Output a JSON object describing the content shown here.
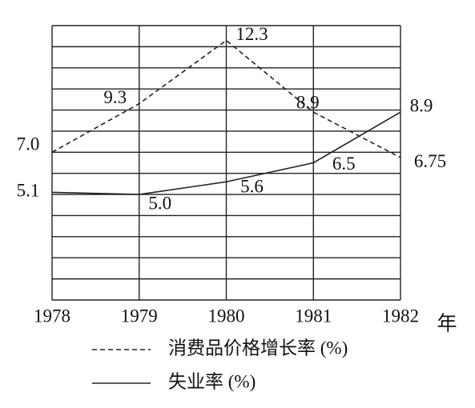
{
  "chart_data": {
    "type": "line",
    "categories": [
      "1978",
      "1979",
      "1980",
      "1981",
      "1982"
    ],
    "x_label": "年",
    "ylim": [
      0,
      13
    ],
    "yticks": [
      0,
      1,
      2,
      3,
      4,
      5,
      6,
      7,
      8,
      9,
      10,
      11,
      12,
      13
    ],
    "grid": true,
    "series": [
      {
        "name": "消费品价格增长率 (%)",
        "color": "#222222",
        "dashed": true,
        "values": [
          7.0,
          9.3,
          12.3,
          8.9,
          6.75
        ],
        "value_labels": [
          "7.0",
          "9.3",
          "12.3",
          "8.9",
          "6.75"
        ]
      },
      {
        "name": "失业率 (%)",
        "color": "#222222",
        "dashed": false,
        "values": [
          5.1,
          5.0,
          5.6,
          6.5,
          8.9
        ],
        "value_labels": [
          "5.1",
          "5.0",
          "5.6",
          "6.5",
          "8.9"
        ]
      }
    ]
  }
}
